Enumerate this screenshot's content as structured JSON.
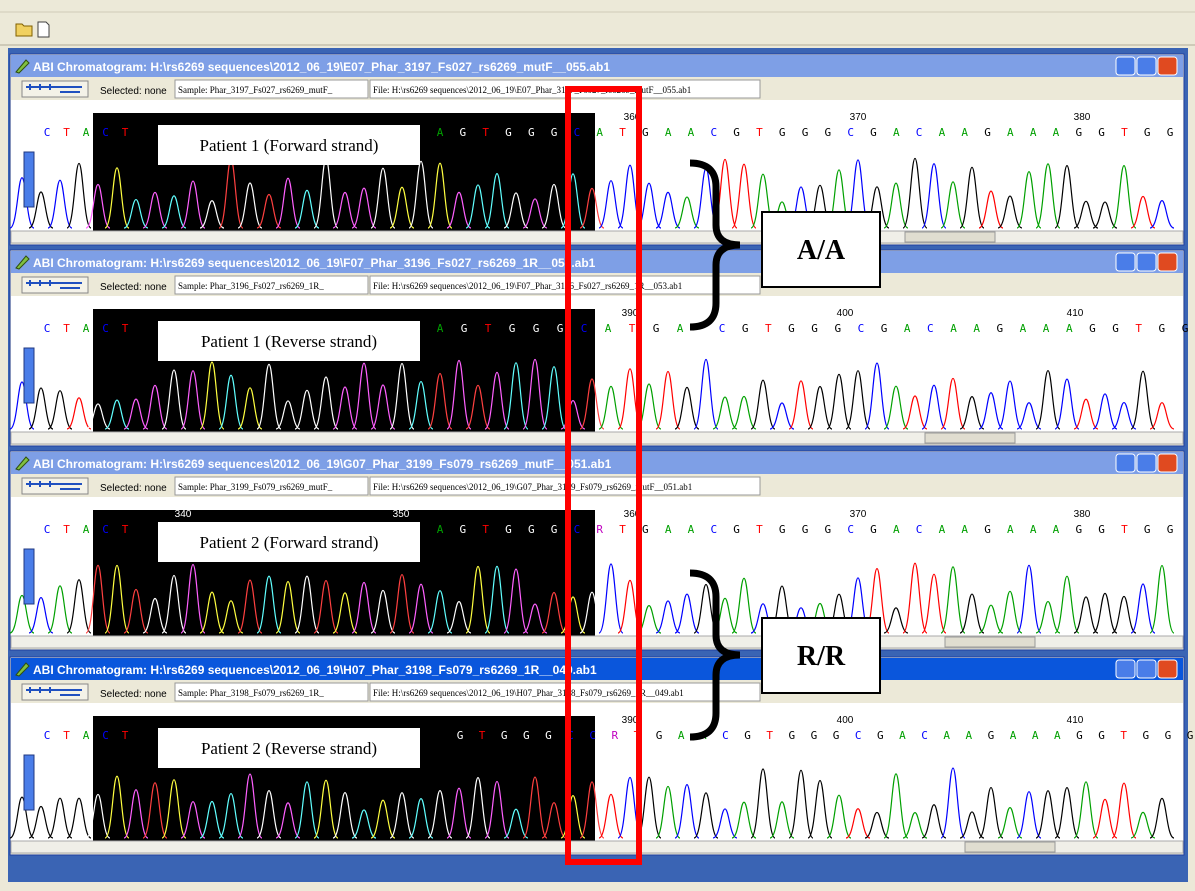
{
  "windows": [
    {
      "title": "ABI Chromatogram: H:\\rs6269 sequences\\2012_06_19\\E07_Phar_3197_Fs027_rs6269_mutF__055.ab1",
      "selected": "Selected: none",
      "sample": "Sample: Phar_3197_Fs027_rs6269_mutF_",
      "file": "File: H:\\rs6269 sequences\\2012_06_19\\E07_Phar_3197_Fs027_rs6269_mutF__055.ab1",
      "label": "Patient 1 (Forward strand)",
      "positions": [
        360,
        370,
        380
      ],
      "bases": [
        [
          "C",
          "T",
          "A",
          "C",
          "T"
        ],
        [
          "A",
          "G",
          "T",
          "G",
          "G",
          "G",
          "C",
          "A",
          "T",
          "G",
          "A",
          "A",
          "C",
          "G",
          "T",
          "G",
          "G",
          "G",
          "C",
          "G",
          "A",
          "C",
          "A",
          "A",
          "G",
          "A",
          "A",
          "A",
          "G",
          "G",
          "T",
          "G",
          "G"
        ]
      ]
    },
    {
      "title": "ABI Chromatogram: H:\\rs6269 sequences\\2012_06_19\\F07_Phar_3196_Fs027_rs6269_1R__053.ab1",
      "selected": "Selected: none",
      "sample": "Sample: Phar_3196_Fs027_rs6269_1R_",
      "file": "File: H:\\rs6269 sequences\\2012_06_19\\F07_Phar_3196_Fs027_rs6269_1R__053.ab1",
      "label": "Patient 1 (Reverse strand)",
      "positions": [
        390,
        400,
        410
      ],
      "bases": [
        [
          "C",
          "T",
          "A",
          "C",
          "T"
        ],
        [
          "A",
          "G",
          "T",
          "G",
          "G",
          "G",
          "C",
          "A",
          "T",
          "G",
          "A"
        ],
        [
          "C",
          "G",
          "T",
          "G",
          "G",
          "G",
          "C",
          "G",
          "A",
          "C",
          "A",
          "A",
          "G",
          "A",
          "A",
          "A",
          "G",
          "G",
          "T",
          "G",
          "G"
        ]
      ]
    },
    {
      "title": "ABI Chromatogram: H:\\rs6269 sequences\\2012_06_19\\G07_Phar_3199_Fs079_rs6269_mutF__051.ab1",
      "selected": "Selected: none",
      "sample": "Sample: Phar_3199_Fs079_rs6269_mutF_",
      "file": "File: H:\\rs6269 sequences\\2012_06_19\\G07_Phar_3199_Fs079_rs6269_mutF__051.ab1",
      "label": "Patient 2 (Forward strand)",
      "positions": [
        340,
        350,
        360,
        370,
        380
      ],
      "bases": [
        [
          "C",
          "T",
          "A",
          "C",
          "T"
        ],
        [
          "A",
          "G",
          "T",
          "G",
          "G",
          "G",
          "C",
          "R",
          "T",
          "G",
          "A",
          "A",
          "C",
          "G",
          "T",
          "G",
          "G",
          "G",
          "C",
          "G",
          "A",
          "C",
          "A",
          "A",
          "G",
          "A",
          "A",
          "A",
          "G",
          "G",
          "T",
          "G",
          "G"
        ]
      ]
    },
    {
      "title": "ABI Chromatogram: H:\\rs6269 sequences\\2012_06_19\\H07_Phar_3198_Fs079_rs6269_1R__049.ab1",
      "selected": "Selected: none",
      "sample": "Sample: Phar_3198_Fs079_rs6269_1R_",
      "file": "File: H:\\rs6269 sequences\\2012_06_19\\H07_Phar_3198_Fs079_rs6269_1R__049.ab1",
      "label": "Patient 2 (Reverse strand)",
      "positions": [
        390,
        400,
        410
      ],
      "bases": [
        [
          "C",
          "T",
          "A",
          "C",
          "T"
        ],
        [
          "G",
          "T",
          "G",
          "G",
          "G",
          "C",
          "C",
          "R",
          "T",
          "G",
          "A",
          "A",
          "C",
          "G",
          "T",
          "G",
          "G",
          "G",
          "C",
          "G",
          "A",
          "C",
          "A",
          "A",
          "G",
          "A",
          "A",
          "A",
          "G",
          "G",
          "T",
          "G",
          "G",
          "G"
        ]
      ]
    }
  ],
  "annotations": [
    "A/A",
    "R/R"
  ],
  "base_colors": {
    "A": "#00a000",
    "C": "#0000ff",
    "G": "#000000",
    "T": "#ff0000",
    "R": "#c000c0"
  }
}
